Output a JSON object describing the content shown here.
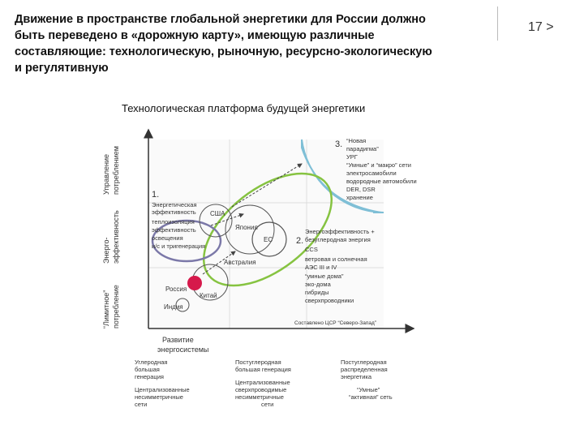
{
  "slide": {
    "title": "Движение в пространстве глобальной энергетики для России должно быть переведено в «дорожную карту», имеющую различные составляющие: технологическую, рыночную, ресурсно-экологическую и регулятивную",
    "title_lines": [
      "Движение в пространстве глобальной энергетики для России должно",
      "быть переведено в «дорожную карту», имеющую различные",
      "составляющие: технологическую, рыночную, ресурсно-экологическую",
      "и регулятивную"
    ],
    "page_number": "17 >",
    "subtitle": "Технологическая платформа будущей энергетики"
  },
  "diagram": {
    "y_axis": {
      "top": [
        "Управление",
        "потреблением"
      ],
      "middle": [
        "Энерго-",
        "эффективность"
      ],
      "bottom": [
        "“Лимитное”",
        "потребление"
      ]
    },
    "x_axis": {
      "label": [
        "Развитие",
        "энергосистемы"
      ],
      "col1_top": [
        "Углеродная",
        "большая",
        "генерация"
      ],
      "col1_bottom": [
        "Централизованные",
        "несимметричные",
        "сети"
      ],
      "col2_top": [
        "Постуглеродная",
        "большая генерация"
      ],
      "col2_bottom": [
        "Централизованные",
        "сверхпроводимые",
        "несимметричные",
        "сети"
      ],
      "col3_top": [
        "Постуглеродная",
        "распределенная",
        "энергетика"
      ],
      "col3_bottom": [
        "“Умные”",
        "“активная” сеть"
      ]
    },
    "zone1": {
      "number": "1.",
      "lines": [
        "Энергетическая",
        "эффективность",
        "теплоизоляция",
        "эффективность",
        "освещения",
        "и/с и тригенерация"
      ]
    },
    "zone2": {
      "number": "2.",
      "lines": [
        "Энергоэффективность +",
        "безуглеродная энергия",
        "CCS",
        "ветровая и солнечная",
        "АЭС III и IV",
        "“умные дома”",
        "эко-дома",
        "гибриды",
        "сверхпроводники"
      ]
    },
    "zone3": {
      "number": "3.",
      "lines": [
        "“Новая",
        "парадигма”",
        "УРГ",
        "“Умные” и “макро” сети",
        "электросамобили",
        "водородные автомобили",
        "DER, DSR",
        "хранение"
      ]
    },
    "countries": {
      "usa": "США",
      "japan": "Япония",
      "eu": "ЕС",
      "australia": "Австралия",
      "russia": "Россия",
      "china": "Китай",
      "india": "Индия"
    },
    "source": "Составлено ЦСР “Северо-Запад”",
    "colors": {
      "zone1": "#7b78a8",
      "zone2": "#86c341",
      "zone3": "#7fbfd6",
      "russia": "#d6194b"
    }
  }
}
